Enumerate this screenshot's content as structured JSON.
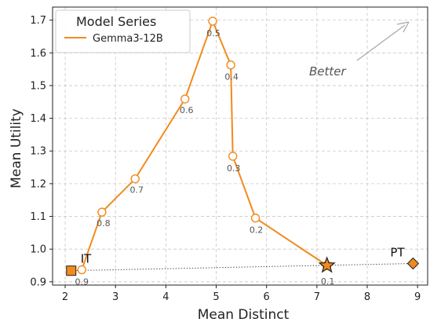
{
  "chart_data": {
    "type": "line",
    "xlabel": "Mean Distinct",
    "ylabel": "Mean Utility",
    "xlim": [
      1.75,
      9.2
    ],
    "ylim": [
      0.89,
      1.74
    ],
    "xticks": [
      2,
      3,
      4,
      5,
      6,
      7,
      8,
      9
    ],
    "yticks": [
      0.9,
      1.0,
      1.1,
      1.2,
      1.3,
      1.4,
      1.5,
      1.6,
      1.7
    ],
    "xtick_labels": [
      "2",
      "3",
      "4",
      "5",
      "6",
      "7",
      "8",
      "9"
    ],
    "ytick_labels": [
      "0.9",
      "1.0",
      "1.1",
      "1.2",
      "1.3",
      "1.4",
      "1.5",
      "1.6",
      "1.7"
    ],
    "grid": true,
    "legend": {
      "title": "Model Series",
      "placement": "top-left"
    },
    "series": [
      {
        "name": "Gemma3-12B",
        "color": "#f28a1e",
        "points": [
          {
            "x": 2.33,
            "y": 0.937,
            "label": "0.9"
          },
          {
            "x": 2.73,
            "y": 1.113,
            "label": "0.8"
          },
          {
            "x": 3.39,
            "y": 1.215,
            "label": "0.7"
          },
          {
            "x": 4.38,
            "y": 1.459,
            "label": "0.6"
          },
          {
            "x": 4.93,
            "y": 1.697,
            "label": "0.5"
          },
          {
            "x": 5.29,
            "y": 1.563,
            "label": "0.4"
          },
          {
            "x": 5.33,
            "y": 1.284,
            "label": "0.3"
          },
          {
            "x": 5.78,
            "y": 1.095,
            "label": "0.2"
          },
          {
            "x": 7.2,
            "y": 0.95,
            "label": "0.1"
          }
        ]
      }
    ],
    "markers": [
      {
        "label": "IT",
        "shape": "square",
        "x": 2.12,
        "y": 0.934,
        "color": "#f28a1e"
      },
      {
        "label": "PT",
        "shape": "diamond",
        "x": 8.91,
        "y": 0.956,
        "color": "#f28a1e"
      }
    ],
    "best_point": {
      "shape": "star",
      "x": 7.2,
      "y": 0.95,
      "color": "#f28a1e"
    },
    "annotation": {
      "text": "Better"
    }
  }
}
